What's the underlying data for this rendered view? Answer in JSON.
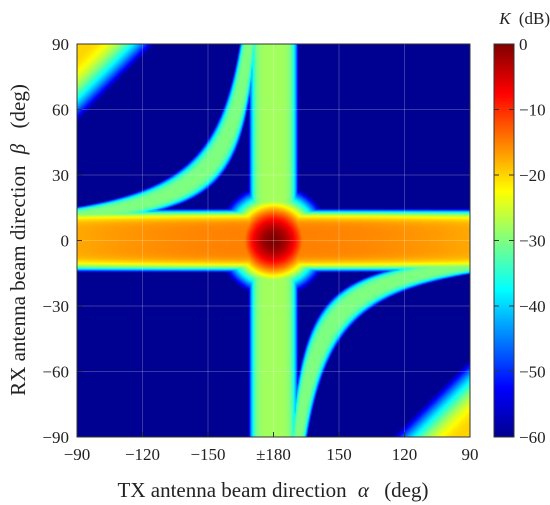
{
  "chart_data": {
    "type": "heatmap",
    "title": "",
    "xlabel_text": "TX antenna beam direction",
    "xlabel_symbol": "α",
    "xlabel_unit": "(deg)",
    "ylabel_text": "RX antenna beam direction",
    "ylabel_symbol": "β",
    "ylabel_unit": "(deg)",
    "x_ticks": [
      {
        "value": -90,
        "label": "−90"
      },
      {
        "value": -120,
        "label": "−120"
      },
      {
        "value": -150,
        "label": "−150"
      },
      {
        "value": 180,
        "label": "±180"
      },
      {
        "value": 150,
        "label": "150"
      },
      {
        "value": 120,
        "label": "120"
      },
      {
        "value": 90,
        "label": "90"
      }
    ],
    "x_axis_order": [
      -90,
      -120,
      -150,
      180,
      150,
      120,
      90
    ],
    "ylim": [
      -90,
      90
    ],
    "y_ticks": [
      {
        "value": 90,
        "label": "90"
      },
      {
        "value": 60,
        "label": "60"
      },
      {
        "value": 30,
        "label": "30"
      },
      {
        "value": 0,
        "label": "0"
      },
      {
        "value": -30,
        "label": "−30"
      },
      {
        "value": -60,
        "label": "−60"
      },
      {
        "value": -90,
        "label": "−90"
      }
    ],
    "grid": true,
    "colorbar": {
      "label_symbol": "K",
      "label_unit": "(dB)",
      "range": [
        -60,
        0
      ],
      "colormap": "jet",
      "ticks": [
        {
          "value": 0,
          "label": "0"
        },
        {
          "value": -10,
          "label": "−10"
        },
        {
          "value": -20,
          "label": "−20"
        },
        {
          "value": -30,
          "label": "−30"
        },
        {
          "value": -40,
          "label": "−40"
        },
        {
          "value": -50,
          "label": "−50"
        },
        {
          "value": -60,
          "label": "−60"
        }
      ]
    },
    "features": {
      "peak": {
        "alpha": 180,
        "beta": 0,
        "K_dB": 0
      },
      "horizontal_band": {
        "beta_center": 0,
        "half_width_deg": 15,
        "K_dB_center": -15
      },
      "vertical_band": {
        "alpha_center": 180,
        "half_width_deg": 12,
        "K_dB_center": -28
      },
      "hyperbolic_arcs": "symmetric cyan-green branches, about -30 dB",
      "background_K_dB": -60
    }
  }
}
